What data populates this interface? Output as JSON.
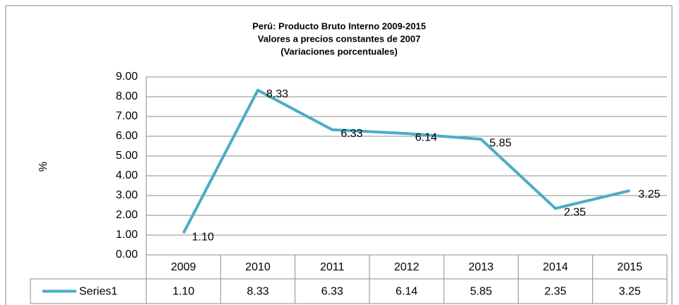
{
  "chart_data": {
    "type": "line",
    "title": "Perú: Producto Bruto Interno 2009-2015",
    "subtitle": [
      "Valores a precios constantes de 2007",
      "(Variaciones porcentuales)"
    ],
    "ylabel": "%",
    "categories": [
      "2009",
      "2010",
      "2011",
      "2012",
      "2013",
      "2014",
      "2015"
    ],
    "series": [
      {
        "name": "Series1",
        "color": "#4bacc6",
        "values": [
          1.1,
          8.33,
          6.33,
          6.14,
          5.85,
          2.35,
          3.25
        ],
        "value_labels": [
          "1.10",
          "8.33",
          "6.33",
          "6.14",
          "5.85",
          "2.35",
          "3.25"
        ]
      }
    ],
    "ylim": [
      0,
      9
    ],
    "yticks": [
      {
        "value": 0,
        "label": "0.00"
      },
      {
        "value": 1,
        "label": "1.00"
      },
      {
        "value": 2,
        "label": "2.00"
      },
      {
        "value": 3,
        "label": "3.00"
      },
      {
        "value": 4,
        "label": "4.00"
      },
      {
        "value": 5,
        "label": "5.00"
      },
      {
        "value": 6,
        "label": "6.00"
      },
      {
        "value": 7,
        "label": "7.00"
      },
      {
        "value": 8,
        "label": "8.00"
      },
      {
        "value": 9,
        "label": "9.00"
      }
    ],
    "grid": true
  }
}
